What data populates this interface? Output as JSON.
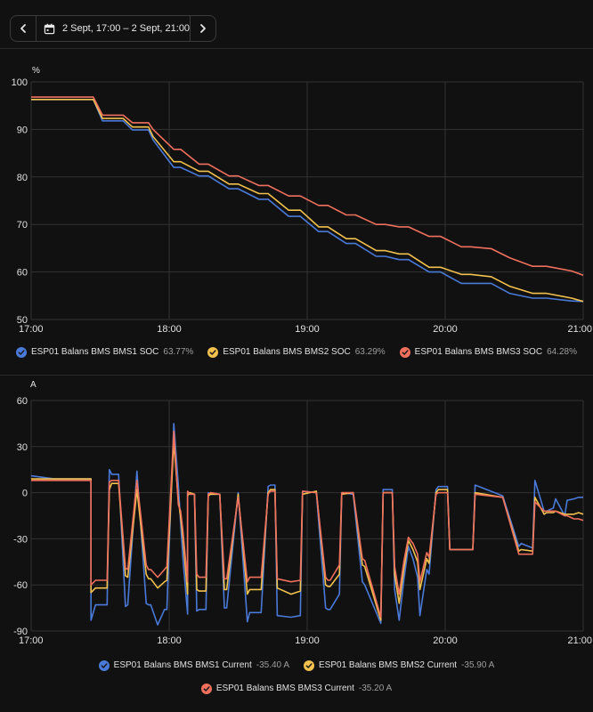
{
  "toolbar": {
    "date_range": "2 Sept, 17:00 – 2 Sept, 21:00",
    "prev_icon": "chevron-left-icon",
    "next_icon": "chevron-right-icon",
    "calendar_icon": "calendar-icon"
  },
  "colors": {
    "bms1": "#4a7ad9",
    "bms2": "#f2c14e",
    "bms3": "#f0705d"
  },
  "chart_data": [
    {
      "type": "line",
      "unit": "%",
      "x_ticks": [
        "17:00",
        "18:00",
        "19:00",
        "20:00",
        "21:00"
      ],
      "xlim": [
        "17:00",
        "21:00"
      ],
      "y_ticks": [
        "100",
        "90",
        "80",
        "70",
        "60",
        "50"
      ],
      "ylim": [
        50,
        100
      ],
      "grid": true,
      "legend_position": "bottom",
      "series": [
        {
          "name": "ESP01 Balans BMS BMS1 SOC",
          "value_label": "63.77%",
          "color": "#4a7ad9",
          "x": [
            "17:00",
            "17:27",
            "17:31",
            "17:40",
            "17:44",
            "17:51",
            "17:53",
            "18:02",
            "18:05",
            "18:13",
            "18:17",
            "18:26",
            "18:30",
            "18:39",
            "18:43",
            "18:52",
            "18:57",
            "19:05",
            "19:09",
            "19:17",
            "19:21",
            "19:30",
            "19:34",
            "19:40",
            "19:44",
            "19:53",
            "19:58",
            "20:07",
            "20:11",
            "20:20",
            "20:28",
            "20:38",
            "20:44",
            "20:55",
            "21:00"
          ],
          "y": [
            96.3,
            96.3,
            91.8,
            91.8,
            89.9,
            89.9,
            87.8,
            82.0,
            82.0,
            80.2,
            80.2,
            77.5,
            77.5,
            75.3,
            75.3,
            71.7,
            71.7,
            68.5,
            68.5,
            66.0,
            66.0,
            63.3,
            63.3,
            62.6,
            62.6,
            60.0,
            60.0,
            57.6,
            57.6,
            57.6,
            55.5,
            54.5,
            54.5,
            53.9,
            53.8
          ]
        },
        {
          "name": "ESP01 Balans BMS BMS2 SOC",
          "value_label": "63.29%",
          "color": "#f2c14e",
          "x": [
            "17:00",
            "17:27",
            "17:31",
            "17:40",
            "17:44",
            "17:51",
            "17:53",
            "18:02",
            "18:05",
            "18:13",
            "18:17",
            "18:26",
            "18:30",
            "18:39",
            "18:43",
            "18:52",
            "18:57",
            "19:05",
            "19:09",
            "19:17",
            "19:21",
            "19:30",
            "19:34",
            "19:40",
            "19:44",
            "19:53",
            "19:58",
            "20:07",
            "20:11",
            "20:20",
            "20:28",
            "20:38",
            "20:44",
            "20:55",
            "21:00"
          ],
          "y": [
            96.3,
            96.3,
            92.3,
            92.3,
            90.5,
            90.5,
            88.5,
            83.2,
            83.2,
            81.2,
            81.2,
            78.5,
            78.5,
            76.5,
            76.5,
            73.0,
            73.0,
            69.5,
            69.5,
            67.0,
            67.0,
            64.5,
            64.5,
            63.8,
            63.8,
            61.0,
            61.0,
            59.5,
            59.5,
            59.0,
            57.0,
            55.5,
            55.5,
            54.5,
            53.8
          ]
        },
        {
          "name": "ESP01 Balans BMS BMS3 SOC",
          "value_label": "64.28%",
          "color": "#f0705d",
          "x": [
            "17:00",
            "17:27",
            "17:31",
            "17:40",
            "17:44",
            "17:51",
            "17:53",
            "18:02",
            "18:05",
            "18:13",
            "18:17",
            "18:26",
            "18:30",
            "18:39",
            "18:43",
            "18:52",
            "18:57",
            "19:05",
            "19:09",
            "19:17",
            "19:21",
            "19:30",
            "19:34",
            "19:40",
            "19:44",
            "19:53",
            "19:58",
            "20:07",
            "20:11",
            "20:20",
            "20:28",
            "20:38",
            "20:44",
            "20:55",
            "21:00"
          ],
          "y": [
            96.8,
            96.8,
            93.0,
            93.0,
            91.4,
            91.4,
            90.0,
            85.8,
            85.8,
            82.7,
            82.7,
            80.2,
            80.2,
            78.2,
            78.2,
            76.0,
            76.0,
            74.0,
            74.0,
            72.0,
            72.0,
            70.0,
            70.0,
            69.5,
            69.5,
            67.5,
            67.5,
            65.3,
            65.3,
            64.9,
            63.0,
            61.2,
            61.2,
            60.2,
            59.3
          ]
        }
      ]
    },
    {
      "type": "line",
      "unit": "A",
      "x_ticks": [
        "17:00",
        "18:00",
        "19:00",
        "20:00",
        "21:00"
      ],
      "xlim": [
        "17:00",
        "21:00"
      ],
      "y_ticks": [
        "60",
        "30",
        "0",
        "-30",
        "-60",
        "-90"
      ],
      "ylim": [
        -90,
        60
      ],
      "grid": true,
      "legend_position": "bottom",
      "series": [
        {
          "name": "ESP01 Balans BMS BMS1 Current",
          "value_label": "-35.40 A",
          "color": "#4a7ad9",
          "x": [
            "17:00",
            "17:10",
            "17:26",
            "17:26",
            "17:28",
            "17:33",
            "17:34",
            "17:35",
            "17:38",
            "17:41",
            "17:42",
            "17:46",
            "17:50",
            "17:51",
            "17:52",
            "17:55",
            "17:58",
            "17:59",
            "18:02",
            "18:04",
            "18:05",
            "18:06",
            "18:08",
            "18:08",
            "18:09",
            "18:11",
            "18:12",
            "18:13",
            "18:16",
            "18:17",
            "18:18",
            "18:22",
            "18:24",
            "18:25",
            "18:30",
            "18:34",
            "18:35",
            "18:40",
            "18:43",
            "18:44",
            "18:46",
            "18:47",
            "18:53",
            "18:57",
            "18:58",
            "19:04",
            "19:08",
            "19:09",
            "19:10",
            "19:14",
            "19:15",
            "19:20",
            "19:24",
            "19:25",
            "19:32",
            "19:33",
            "19:37",
            "19:38",
            "19:40",
            "19:42",
            "19:44",
            "19:46",
            "19:48",
            "19:49",
            "19:52",
            "19:53",
            "19:56",
            "19:57",
            "20:01",
            "20:02",
            "20:12",
            "20:13",
            "20:25",
            "20:32",
            "20:33",
            "20:38",
            "20:39",
            "20:43",
            "20:44",
            "20:47",
            "20:48",
            "20:52",
            "20:53",
            "20:56",
            "20:58",
            "21:00"
          ],
          "y": [
            11,
            9,
            9,
            -83,
            -73,
            -73,
            15,
            12,
            12,
            -74,
            -73,
            14,
            -72,
            -73,
            -73,
            -86,
            -76,
            -76,
            45,
            5,
            -20,
            -43,
            -79,
            0,
            -1,
            -1,
            -77,
            -76,
            -76,
            0,
            -1,
            -1,
            -75,
            -75,
            0,
            -84,
            -78,
            -78,
            4,
            5,
            5,
            -80,
            -81,
            -80,
            1,
            0,
            -75,
            -76,
            -76,
            -66,
            0,
            -1,
            -58,
            -60,
            -85,
            2,
            2,
            -63,
            -83,
            -57,
            -35,
            -43,
            -55,
            -80,
            -50,
            -53,
            2,
            4,
            4,
            -37,
            -37,
            5,
            -2,
            -35,
            -33,
            -36,
            8,
            -12,
            -12,
            -10,
            -4,
            -15,
            -5,
            -4,
            -3,
            -3
          ]
        },
        {
          "name": "ESP01 Balans BMS BMS2 Current",
          "value_label": "-35.90 A",
          "color": "#f2c14e",
          "x": [
            "17:00",
            "17:10",
            "17:26",
            "17:26",
            "17:28",
            "17:33",
            "17:34",
            "17:35",
            "17:38",
            "17:41",
            "17:42",
            "17:46",
            "17:50",
            "17:51",
            "17:52",
            "17:55",
            "17:58",
            "17:59",
            "18:02",
            "18:04",
            "18:05",
            "18:06",
            "18:08",
            "18:08",
            "18:09",
            "18:11",
            "18:12",
            "18:13",
            "18:16",
            "18:17",
            "18:18",
            "18:22",
            "18:24",
            "18:25",
            "18:30",
            "18:34",
            "18:35",
            "18:40",
            "18:43",
            "18:44",
            "18:46",
            "18:47",
            "18:53",
            "18:57",
            "18:58",
            "19:04",
            "19:08",
            "19:09",
            "19:10",
            "19:14",
            "19:15",
            "19:20",
            "19:24",
            "19:25",
            "19:32",
            "19:33",
            "19:37",
            "19:38",
            "19:40",
            "19:42",
            "19:44",
            "19:46",
            "19:48",
            "19:49",
            "19:52",
            "19:53",
            "19:56",
            "19:57",
            "20:01",
            "20:02",
            "20:12",
            "20:13",
            "20:25",
            "20:32",
            "20:33",
            "20:38",
            "20:39",
            "20:43",
            "20:44",
            "20:47",
            "20:48",
            "20:52",
            "20:53",
            "20:56",
            "20:58",
            "21:00"
          ],
          "y": [
            9,
            9,
            9,
            -65,
            -62,
            -62,
            2,
            6,
            6,
            -54,
            -55,
            2,
            -53,
            -56,
            -56,
            -62,
            -58,
            -57,
            33,
            -5,
            -16,
            -30,
            -66,
            -2,
            0,
            -1,
            -63,
            -64,
            -64,
            -2,
            -1,
            -1,
            -63,
            -63,
            -1,
            -66,
            -63,
            -63,
            0,
            2,
            2,
            -62,
            -66,
            -64,
            -1,
            1,
            -60,
            -61,
            -61,
            -53,
            -1,
            0,
            -47,
            -48,
            -83,
            0,
            0,
            -53,
            -72,
            -50,
            -31,
            -37,
            -45,
            -63,
            -43,
            -46,
            0,
            2,
            2,
            -37,
            -37,
            0,
            -3,
            -38,
            -37,
            -38,
            -3,
            -14,
            -13,
            -13,
            -12,
            -14,
            -14,
            -14,
            -13,
            -14
          ]
        },
        {
          "name": "ESP01 Balans BMS BMS3 Current",
          "value_label": "-35.20 A",
          "color": "#f0705d",
          "x": [
            "17:00",
            "17:10",
            "17:26",
            "17:26",
            "17:28",
            "17:33",
            "17:34",
            "17:35",
            "17:38",
            "17:41",
            "17:42",
            "17:46",
            "17:50",
            "17:51",
            "17:52",
            "17:55",
            "17:58",
            "17:59",
            "18:02",
            "18:04",
            "18:05",
            "18:06",
            "18:08",
            "18:08",
            "18:09",
            "18:11",
            "18:12",
            "18:13",
            "18:16",
            "18:17",
            "18:18",
            "18:22",
            "18:24",
            "18:25",
            "18:30",
            "18:34",
            "18:35",
            "18:40",
            "18:43",
            "18:44",
            "18:46",
            "18:47",
            "18:53",
            "18:57",
            "18:58",
            "19:04",
            "19:08",
            "19:09",
            "19:10",
            "19:14",
            "19:15",
            "19:20",
            "19:24",
            "19:25",
            "19:32",
            "19:33",
            "19:37",
            "19:38",
            "19:40",
            "19:42",
            "19:44",
            "19:46",
            "19:48",
            "19:49",
            "19:52",
            "19:53",
            "19:56",
            "19:57",
            "20:01",
            "20:02",
            "20:12",
            "20:13",
            "20:25",
            "20:32",
            "20:33",
            "20:38",
            "20:39",
            "20:43",
            "20:44",
            "20:47",
            "20:48",
            "20:52",
            "20:53",
            "20:56",
            "20:58",
            "21:00"
          ],
          "y": [
            8,
            8,
            8,
            -60,
            -57,
            -57,
            7,
            8,
            8,
            -49,
            -50,
            8,
            -47,
            -50,
            -50,
            -55,
            -50,
            -48,
            40,
            -8,
            -12,
            -25,
            -58,
            1,
            -1,
            -1,
            -53,
            -55,
            -55,
            -1,
            0,
            -1,
            -56,
            -56,
            -3,
            -58,
            -55,
            -55,
            -1,
            1,
            1,
            -56,
            -58,
            -57,
            1,
            0,
            -55,
            -57,
            -57,
            -47,
            0,
            0,
            -43,
            -44,
            -81,
            0,
            0,
            -48,
            -66,
            -45,
            -29,
            -33,
            -40,
            -58,
            -39,
            -42,
            -1,
            0,
            0,
            -37,
            -37,
            -1,
            -3,
            -40,
            -40,
            -40,
            -6,
            -12,
            -12,
            -12,
            -12,
            -15,
            -15,
            -17,
            -17,
            -18
          ]
        }
      ]
    }
  ]
}
